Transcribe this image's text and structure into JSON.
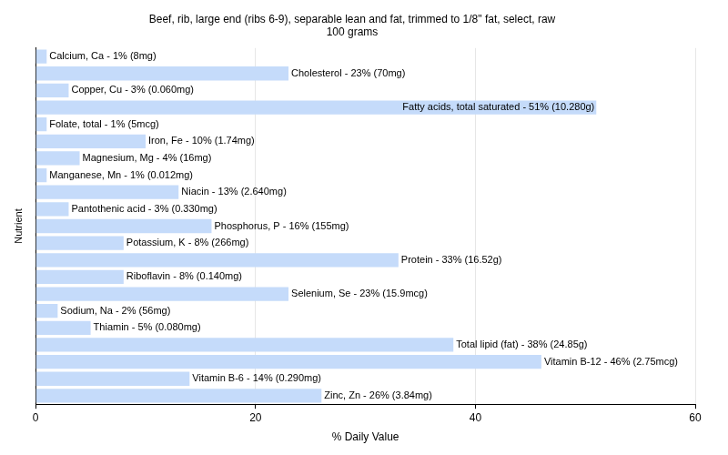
{
  "chart_data": {
    "type": "bar",
    "orientation": "horizontal",
    "title": [
      "Beef, rib, large end (ribs 6-9), separable lean and fat, trimmed to 1/8\" fat, select, raw",
      "100 grams"
    ],
    "x_label": "% Daily Value",
    "y_label": "Nutrient",
    "categories": [
      "Calcium, Ca - 1% (8mg)",
      "Cholesterol - 23% (70mg)",
      "Copper, Cu - 3% (0.060mg)",
      "Fatty acids, total saturated - 51% (10.280g)",
      "Folate, total - 1% (5mcg)",
      "Iron, Fe - 10% (1.74mg)",
      "Magnesium, Mg - 4% (16mg)",
      "Manganese, Mn - 1% (0.012mg)",
      "Niacin - 13% (2.640mg)",
      "Pantothenic acid - 3% (0.330mg)",
      "Phosphorus, P - 16% (155mg)",
      "Potassium, K - 8% (266mg)",
      "Protein - 33% (16.52g)",
      "Riboflavin - 8% (0.140mg)",
      "Selenium, Se - 23% (15.9mcg)",
      "Sodium, Na - 2% (56mg)",
      "Thiamin - 5% (0.080mg)",
      "Total lipid (fat) - 38% (24.85g)",
      "Vitamin B-12 - 46% (2.75mcg)",
      "Vitamin B-6 - 14% (0.290mg)",
      "Zinc, Zn - 26% (3.84mg)"
    ],
    "values": [
      1,
      23,
      3,
      51,
      1,
      10,
      4,
      1,
      13,
      3,
      16,
      8,
      33,
      8,
      23,
      2,
      5,
      38,
      46,
      14,
      26
    ],
    "color": "#c5dbfa",
    "xlim": [
      0,
      60
    ],
    "xticks": [
      0,
      20,
      40,
      60
    ],
    "grid": true,
    "tick_labels": "x"
  }
}
